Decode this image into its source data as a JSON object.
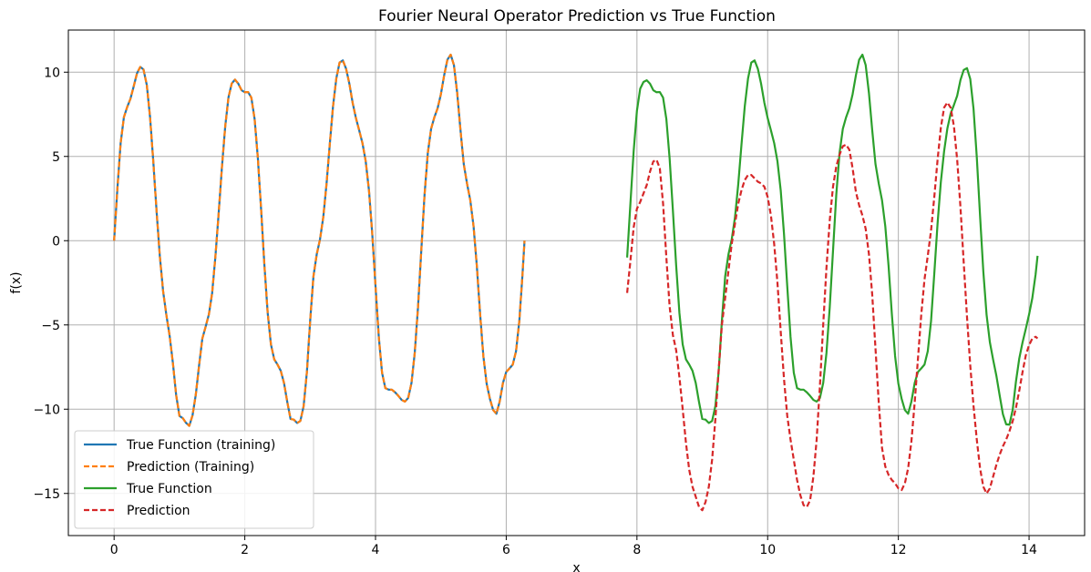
{
  "chart_data": {
    "type": "line",
    "title": "Fourier Neural Operator Prediction vs True Function",
    "xlabel": "x",
    "ylabel": "f(x)",
    "xlim": [
      -0.7,
      14.85
    ],
    "ylim": [
      -17.5,
      12.5
    ],
    "xticks": [
      0,
      2,
      4,
      6,
      8,
      10,
      12,
      14
    ],
    "yticks": [
      -15,
      -10,
      -5,
      0,
      5,
      10
    ],
    "xtick_labels": [
      "0",
      "2",
      "4",
      "6",
      "8",
      "10",
      "12",
      "14"
    ],
    "ytick_labels": [
      "−15",
      "−10",
      "−5",
      "0",
      "5",
      "10"
    ],
    "grid": true,
    "legend_position": "lower-left",
    "series": [
      {
        "name": "True Function (training)",
        "color": "#1f77b4",
        "style": "solid",
        "x": [
          0,
          0.05,
          0.1,
          0.15,
          0.2,
          0.25,
          0.3,
          0.35,
          0.4,
          0.45,
          0.5,
          0.55,
          0.6,
          0.65,
          0.7,
          0.75,
          0.8,
          0.85,
          0.9,
          0.95,
          1.0,
          1.05,
          1.1,
          1.15,
          1.2,
          1.25,
          1.3,
          1.35,
          1.4,
          1.45,
          1.5,
          1.55,
          1.6,
          1.65,
          1.7,
          1.75,
          1.8,
          1.85,
          1.9,
          1.95,
          2.0,
          2.05,
          2.1,
          2.15,
          2.2,
          2.25,
          2.3,
          2.35,
          2.4,
          2.45,
          2.5,
          2.55,
          2.6,
          2.65,
          2.7,
          2.75,
          2.8,
          2.85,
          2.9,
          2.95,
          3.0,
          3.05,
          3.1,
          3.15,
          3.2,
          3.25,
          3.3,
          3.35,
          3.4,
          3.45,
          3.5,
          3.55,
          3.6,
          3.65,
          3.7,
          3.75,
          3.8,
          3.85,
          3.9,
          3.95,
          4.0,
          4.05,
          4.1,
          4.15,
          4.2,
          4.25,
          4.3,
          4.35,
          4.4,
          4.45,
          4.5,
          4.55,
          4.6,
          4.65,
          4.7,
          4.75,
          4.8,
          4.85,
          4.9,
          4.95,
          5.0,
          5.05,
          5.1,
          5.15,
          5.2,
          5.25,
          5.3,
          5.35,
          5.4,
          5.45,
          5.5,
          5.55,
          5.6,
          5.65,
          5.7,
          5.75,
          5.8,
          5.85,
          5.9,
          5.95,
          6.0,
          6.05,
          6.1,
          6.15,
          6.2,
          6.25,
          6.28
        ],
        "y": [
          0.0,
          3.08,
          5.79,
          7.33,
          7.93,
          8.42,
          9.16,
          9.93,
          10.31,
          10.16,
          9.24,
          7.34,
          4.68,
          1.74,
          -0.94,
          -3.0,
          -4.42,
          -5.65,
          -7.28,
          -9.18,
          -10.4,
          -10.53,
          -10.81,
          -10.99,
          -10.37,
          -9.14,
          -7.41,
          -5.81,
          -5.11,
          -4.38,
          -3.11,
          -0.95,
          1.64,
          4.36,
          6.77,
          8.51,
          9.33,
          9.56,
          9.32,
          8.93,
          8.81,
          8.82,
          8.49,
          7.22,
          4.88,
          1.81,
          -1.46,
          -4.29,
          -6.16,
          -7.04,
          -7.35,
          -7.72,
          -8.45,
          -9.58,
          -10.58,
          -10.62,
          -10.82,
          -10.7,
          -9.82,
          -7.79,
          -4.75,
          -2.12,
          -0.82,
          0.07,
          1.38,
          3.35,
          5.72,
          7.98,
          9.63,
          10.57,
          10.7,
          10.2,
          9.31,
          8.18,
          7.28,
          6.55,
          5.79,
          4.71,
          2.98,
          0.41,
          -2.71,
          -5.71,
          -7.84,
          -8.75,
          -8.84,
          -8.84,
          -9.0,
          -9.21,
          -9.45,
          -9.55,
          -9.33,
          -8.45,
          -6.66,
          -3.95,
          -0.61,
          2.72,
          5.2,
          6.63,
          7.32,
          7.86,
          8.69,
          9.81,
          10.74,
          11.04,
          10.42,
          8.76,
          6.56,
          4.55,
          3.39,
          2.4,
          0.86,
          -1.49,
          -4.33,
          -6.85,
          -8.48,
          -9.38,
          -10.05,
          -10.27,
          -9.54,
          -8.44,
          -7.79,
          -7.58,
          -7.35,
          -6.56,
          -4.78,
          -1.94,
          0.0
        ]
      },
      {
        "name": "Prediction (Training)",
        "color": "#ff7f0e",
        "style": "dashed",
        "x": [
          0,
          0.05,
          0.1,
          0.15,
          0.2,
          0.25,
          0.3,
          0.35,
          0.4,
          0.45,
          0.5,
          0.55,
          0.6,
          0.65,
          0.7,
          0.75,
          0.8,
          0.85,
          0.9,
          0.95,
          1.0,
          1.05,
          1.1,
          1.15,
          1.2,
          1.25,
          1.3,
          1.35,
          1.4,
          1.45,
          1.5,
          1.55,
          1.6,
          1.65,
          1.7,
          1.75,
          1.8,
          1.85,
          1.9,
          1.95,
          2.0,
          2.05,
          2.1,
          2.15,
          2.2,
          2.25,
          2.3,
          2.35,
          2.4,
          2.45,
          2.5,
          2.55,
          2.6,
          2.65,
          2.7,
          2.75,
          2.8,
          2.85,
          2.9,
          2.95,
          3.0,
          3.05,
          3.1,
          3.15,
          3.2,
          3.25,
          3.3,
          3.35,
          3.4,
          3.45,
          3.5,
          3.55,
          3.6,
          3.65,
          3.7,
          3.75,
          3.8,
          3.85,
          3.9,
          3.95,
          4.0,
          4.05,
          4.1,
          4.15,
          4.2,
          4.25,
          4.3,
          4.35,
          4.4,
          4.45,
          4.5,
          4.55,
          4.6,
          4.65,
          4.7,
          4.75,
          4.8,
          4.85,
          4.9,
          4.95,
          5.0,
          5.05,
          5.1,
          5.15,
          5.2,
          5.25,
          5.3,
          5.35,
          5.4,
          5.45,
          5.5,
          5.55,
          5.6,
          5.65,
          5.7,
          5.75,
          5.8,
          5.85,
          5.9,
          5.95,
          6.0,
          6.05,
          6.1,
          6.15,
          6.2,
          6.25,
          6.28
        ],
        "y": [
          0.0,
          3.08,
          5.79,
          7.33,
          7.93,
          8.42,
          9.16,
          9.93,
          10.31,
          10.16,
          9.24,
          7.34,
          4.68,
          1.74,
          -0.94,
          -3.0,
          -4.42,
          -5.65,
          -7.28,
          -9.18,
          -10.4,
          -10.53,
          -10.81,
          -10.99,
          -10.37,
          -9.14,
          -7.41,
          -5.81,
          -5.11,
          -4.38,
          -3.11,
          -0.95,
          1.64,
          4.36,
          6.77,
          8.51,
          9.33,
          9.56,
          9.32,
          8.93,
          8.81,
          8.82,
          8.49,
          7.22,
          4.88,
          1.81,
          -1.46,
          -4.29,
          -6.16,
          -7.04,
          -7.35,
          -7.72,
          -8.45,
          -9.58,
          -10.58,
          -10.62,
          -10.82,
          -10.7,
          -9.82,
          -7.79,
          -4.75,
          -2.12,
          -0.82,
          0.07,
          1.38,
          3.35,
          5.72,
          7.98,
          9.63,
          10.57,
          10.7,
          10.2,
          9.31,
          8.18,
          7.28,
          6.55,
          5.79,
          4.71,
          2.98,
          0.41,
          -2.71,
          -5.71,
          -7.84,
          -8.75,
          -8.84,
          -8.84,
          -9.0,
          -9.21,
          -9.45,
          -9.55,
          -9.33,
          -8.45,
          -6.66,
          -3.95,
          -0.61,
          2.72,
          5.2,
          6.63,
          7.32,
          7.86,
          8.69,
          9.81,
          10.74,
          11.04,
          10.42,
          8.76,
          6.56,
          4.55,
          3.39,
          2.4,
          0.86,
          -1.49,
          -4.33,
          -6.85,
          -8.48,
          -9.38,
          -10.05,
          -10.27,
          -9.54,
          -8.44,
          -7.79,
          -7.58,
          -7.35,
          -6.56,
          -4.78,
          -1.94,
          0.0
        ]
      },
      {
        "name": "True Function",
        "color": "#2ca02c",
        "style": "solid",
        "x": [
          7.85,
          7.9,
          7.95,
          8.0,
          8.05,
          8.1,
          8.15,
          8.2,
          8.25,
          8.3,
          8.35,
          8.4,
          8.45,
          8.5,
          8.55,
          8.6,
          8.65,
          8.7,
          8.75,
          8.8,
          8.85,
          8.9,
          8.95,
          9.0,
          9.05,
          9.1,
          9.15,
          9.2,
          9.25,
          9.3,
          9.35,
          9.4,
          9.45,
          9.5,
          9.55,
          9.6,
          9.65,
          9.7,
          9.75,
          9.8,
          9.85,
          9.9,
          9.95,
          10.0,
          10.05,
          10.1,
          10.15,
          10.2,
          10.25,
          10.3,
          10.35,
          10.4,
          10.45,
          10.5,
          10.55,
          10.6,
          10.65,
          10.7,
          10.75,
          10.8,
          10.85,
          10.9,
          10.95,
          11.0,
          11.05,
          11.1,
          11.15,
          11.2,
          11.25,
          11.3,
          11.35,
          11.4,
          11.45,
          11.5,
          11.55,
          11.6,
          11.65,
          11.7,
          11.75,
          11.8,
          11.85,
          11.9,
          11.95,
          12.0,
          12.05,
          12.1,
          12.15,
          12.2,
          12.25,
          12.3,
          12.35,
          12.4,
          12.45,
          12.5,
          12.55,
          12.6,
          12.65,
          12.7,
          12.75,
          12.8,
          12.85,
          12.9,
          12.95,
          13.0,
          13.05,
          13.1,
          13.15,
          13.2,
          13.25,
          13.3,
          13.35,
          13.4,
          13.45,
          13.5,
          13.55,
          13.6,
          13.65,
          13.7,
          13.75,
          13.8,
          13.85,
          13.9,
          13.95,
          14.0,
          14.05,
          14.1,
          14.13
        ],
        "y": [
          -1.0,
          2.2,
          5.33,
          7.72,
          9.02,
          9.42,
          9.52,
          9.32,
          8.93,
          8.81,
          8.82,
          8.49,
          7.22,
          4.88,
          1.81,
          -1.46,
          -4.29,
          -6.16,
          -7.04,
          -7.35,
          -7.72,
          -8.45,
          -9.58,
          -10.58,
          -10.62,
          -10.82,
          -10.7,
          -9.82,
          -7.79,
          -4.75,
          -2.12,
          -0.82,
          0.07,
          1.38,
          3.35,
          5.72,
          7.98,
          9.63,
          10.57,
          10.7,
          10.2,
          9.31,
          8.18,
          7.28,
          6.55,
          5.79,
          4.71,
          2.98,
          0.41,
          -2.71,
          -5.71,
          -7.84,
          -8.75,
          -8.84,
          -8.84,
          -9.0,
          -9.21,
          -9.45,
          -9.55,
          -9.33,
          -8.45,
          -6.66,
          -3.95,
          -0.61,
          2.72,
          5.2,
          6.63,
          7.32,
          7.86,
          8.69,
          9.81,
          10.74,
          11.04,
          10.42,
          8.76,
          6.56,
          4.55,
          3.39,
          2.4,
          0.86,
          -1.49,
          -4.33,
          -6.85,
          -8.48,
          -9.38,
          -10.05,
          -10.27,
          -9.54,
          -8.44,
          -7.79,
          -7.58,
          -7.35,
          -6.56,
          -4.78,
          -1.94,
          1.02,
          3.48,
          5.31,
          6.66,
          7.54,
          8.05,
          8.6,
          9.53,
          10.13,
          10.24,
          9.6,
          7.84,
          4.96,
          1.48,
          -1.83,
          -4.4,
          -6.02,
          -7.06,
          -8.02,
          -9.18,
          -10.3,
          -10.9,
          -10.92,
          -10.02,
          -8.34,
          -6.99,
          -6.04,
          -5.23,
          -4.38,
          -3.4,
          -2.0,
          -0.9
        ]
      },
      {
        "name": "Prediction",
        "color": "#d62728",
        "style": "dashed",
        "x": [
          7.85,
          7.9,
          7.95,
          8.0,
          8.05,
          8.1,
          8.15,
          8.2,
          8.25,
          8.3,
          8.35,
          8.4,
          8.45,
          8.5,
          8.55,
          8.6,
          8.65,
          8.7,
          8.75,
          8.8,
          8.85,
          8.9,
          8.95,
          9.0,
          9.05,
          9.1,
          9.15,
          9.2,
          9.25,
          9.3,
          9.35,
          9.4,
          9.45,
          9.5,
          9.55,
          9.6,
          9.65,
          9.7,
          9.75,
          9.8,
          9.85,
          9.9,
          9.95,
          10.0,
          10.05,
          10.1,
          10.15,
          10.2,
          10.25,
          10.3,
          10.35,
          10.4,
          10.45,
          10.5,
          10.55,
          10.6,
          10.65,
          10.7,
          10.75,
          10.8,
          10.85,
          10.9,
          10.95,
          11.0,
          11.05,
          11.1,
          11.15,
          11.2,
          11.25,
          11.3,
          11.35,
          11.4,
          11.45,
          11.5,
          11.55,
          11.6,
          11.65,
          11.7,
          11.75,
          11.8,
          11.85,
          11.9,
          11.95,
          12.0,
          12.05,
          12.1,
          12.15,
          12.2,
          12.25,
          12.3,
          12.35,
          12.4,
          12.45,
          12.5,
          12.55,
          12.6,
          12.65,
          12.7,
          12.75,
          12.8,
          12.85,
          12.9,
          12.95,
          13.0,
          13.05,
          13.1,
          13.15,
          13.2,
          13.25,
          13.3,
          13.35,
          13.4,
          13.45,
          13.5,
          13.55,
          13.6,
          13.65,
          13.7,
          13.75,
          13.8,
          13.85,
          13.9,
          13.95,
          14.0,
          14.05,
          14.1,
          14.13
        ],
        "y": [
          -3.1,
          -1.2,
          0.8,
          1.9,
          2.3,
          2.8,
          3.3,
          4.1,
          4.7,
          4.8,
          4.3,
          2.2,
          -1.0,
          -3.9,
          -5.6,
          -6.5,
          -8.1,
          -10.0,
          -12.0,
          -13.6,
          -14.6,
          -15.2,
          -15.8,
          -16.0,
          -15.5,
          -14.6,
          -13.0,
          -10.6,
          -7.7,
          -5.0,
          -3.4,
          -1.8,
          -0.2,
          1.0,
          2.2,
          3.0,
          3.6,
          3.9,
          3.9,
          3.7,
          3.5,
          3.4,
          3.2,
          2.6,
          1.5,
          -0.2,
          -2.5,
          -5.4,
          -8.2,
          -10.4,
          -11.8,
          -13.0,
          -14.2,
          -15.1,
          -15.7,
          -15.8,
          -15.4,
          -14.0,
          -11.8,
          -8.6,
          -5.0,
          -1.6,
          1.2,
          3.2,
          4.4,
          5.1,
          5.6,
          5.7,
          5.4,
          4.3,
          2.9,
          2.1,
          1.5,
          0.7,
          -0.8,
          -3.2,
          -6.4,
          -9.6,
          -12.3,
          -13.4,
          -13.9,
          -14.2,
          -14.4,
          -14.7,
          -14.8,
          -14.4,
          -13.5,
          -11.9,
          -9.6,
          -7.0,
          -4.4,
          -2.3,
          -0.9,
          0.6,
          2.6,
          4.8,
          6.7,
          7.9,
          8.2,
          7.9,
          6.8,
          4.8,
          2.0,
          -1.3,
          -4.5,
          -7.4,
          -9.8,
          -11.8,
          -13.5,
          -14.6,
          -15.0,
          -14.7,
          -14.0,
          -13.3,
          -12.7,
          -12.2,
          -11.8,
          -11.3,
          -10.7,
          -9.9,
          -8.9,
          -7.8,
          -6.8,
          -6.2,
          -5.8,
          -5.7,
          -5.8
        ]
      }
    ]
  }
}
